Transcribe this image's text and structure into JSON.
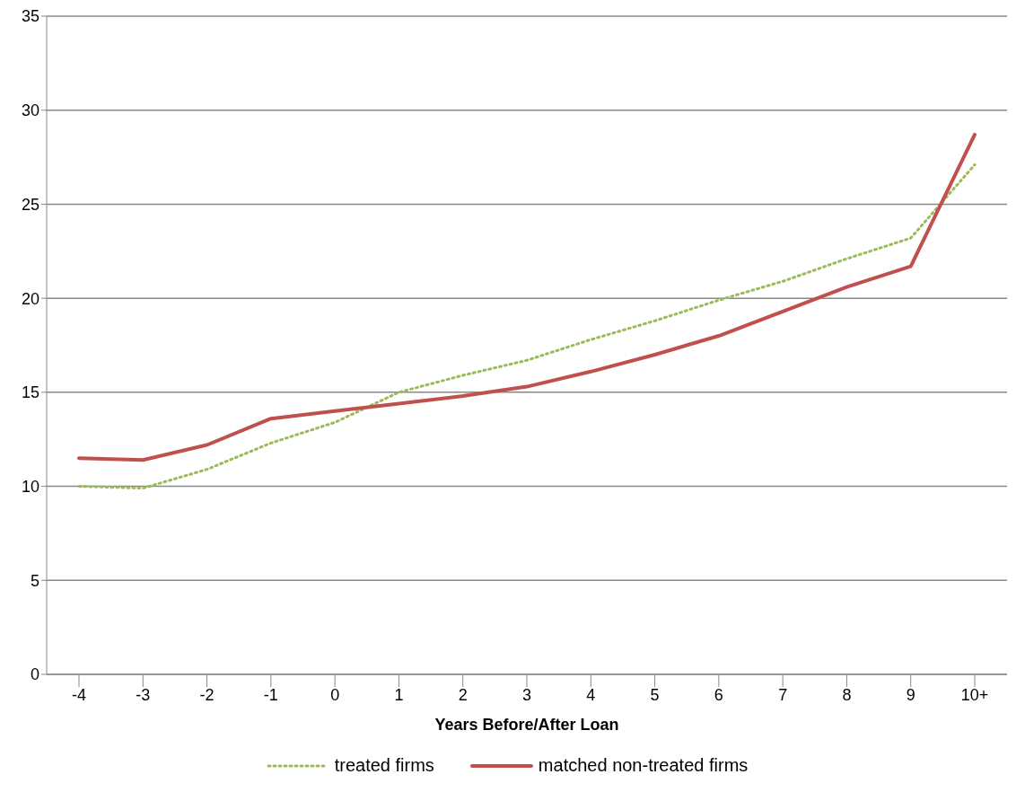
{
  "chart_data": {
    "type": "line",
    "xlabel": "Years Before/After Loan",
    "categories": [
      "-4",
      "-3",
      "-2",
      "-1",
      "0",
      "1",
      "2",
      "3",
      "4",
      "5",
      "6",
      "7",
      "8",
      "9",
      "10+"
    ],
    "series": [
      {
        "name": "treated firms",
        "color": "#9bbb59",
        "line_style": "dotted",
        "values": [
          10.0,
          9.9,
          10.9,
          12.3,
          13.4,
          15.0,
          15.9,
          16.7,
          17.8,
          18.8,
          19.9,
          20.9,
          22.1,
          23.2,
          27.1
        ]
      },
      {
        "name": "matched non-treated firms",
        "color": "#c0504d",
        "line_style": "solid",
        "values": [
          11.5,
          11.4,
          12.2,
          13.6,
          14.0,
          14.4,
          14.8,
          15.3,
          16.1,
          17.0,
          18.0,
          19.3,
          20.6,
          21.7,
          28.7
        ]
      }
    ],
    "ylim": [
      0,
      35
    ],
    "yticks": [
      0,
      5,
      10,
      15,
      20,
      25,
      30,
      35
    ],
    "grid": "y",
    "legend": "bottom",
    "marker": "none"
  }
}
